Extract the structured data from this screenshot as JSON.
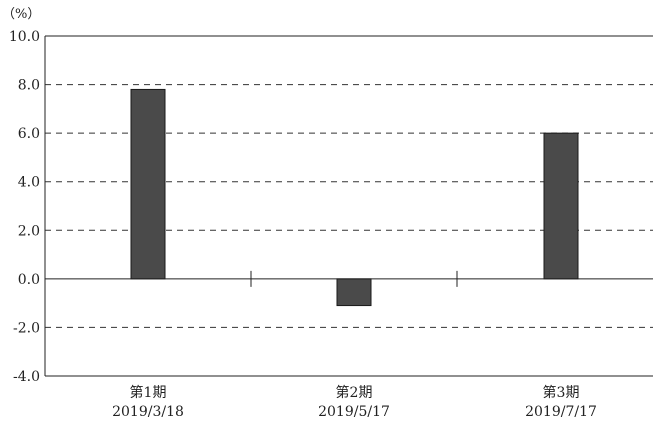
{
  "chart_data": {
    "type": "bar",
    "unit_label": "（%）",
    "categories": [
      {
        "name": "第1期",
        "date": "2019/3/18"
      },
      {
        "name": "第2期",
        "date": "2019/5/17"
      },
      {
        "name": "第3期",
        "date": "2019/7/17"
      }
    ],
    "values": [
      7.8,
      -1.1,
      6.0
    ],
    "ylim": [
      -4.0,
      10.0
    ],
    "y_ticks": [
      "10.0",
      "8.0",
      "6.0",
      "4.0",
      "2.0",
      "0.0",
      "-2.0",
      "-4.0"
    ],
    "grid": "dashed-horizontal",
    "bar_color": "#4a4a4a",
    "axis_color": "#222222"
  }
}
